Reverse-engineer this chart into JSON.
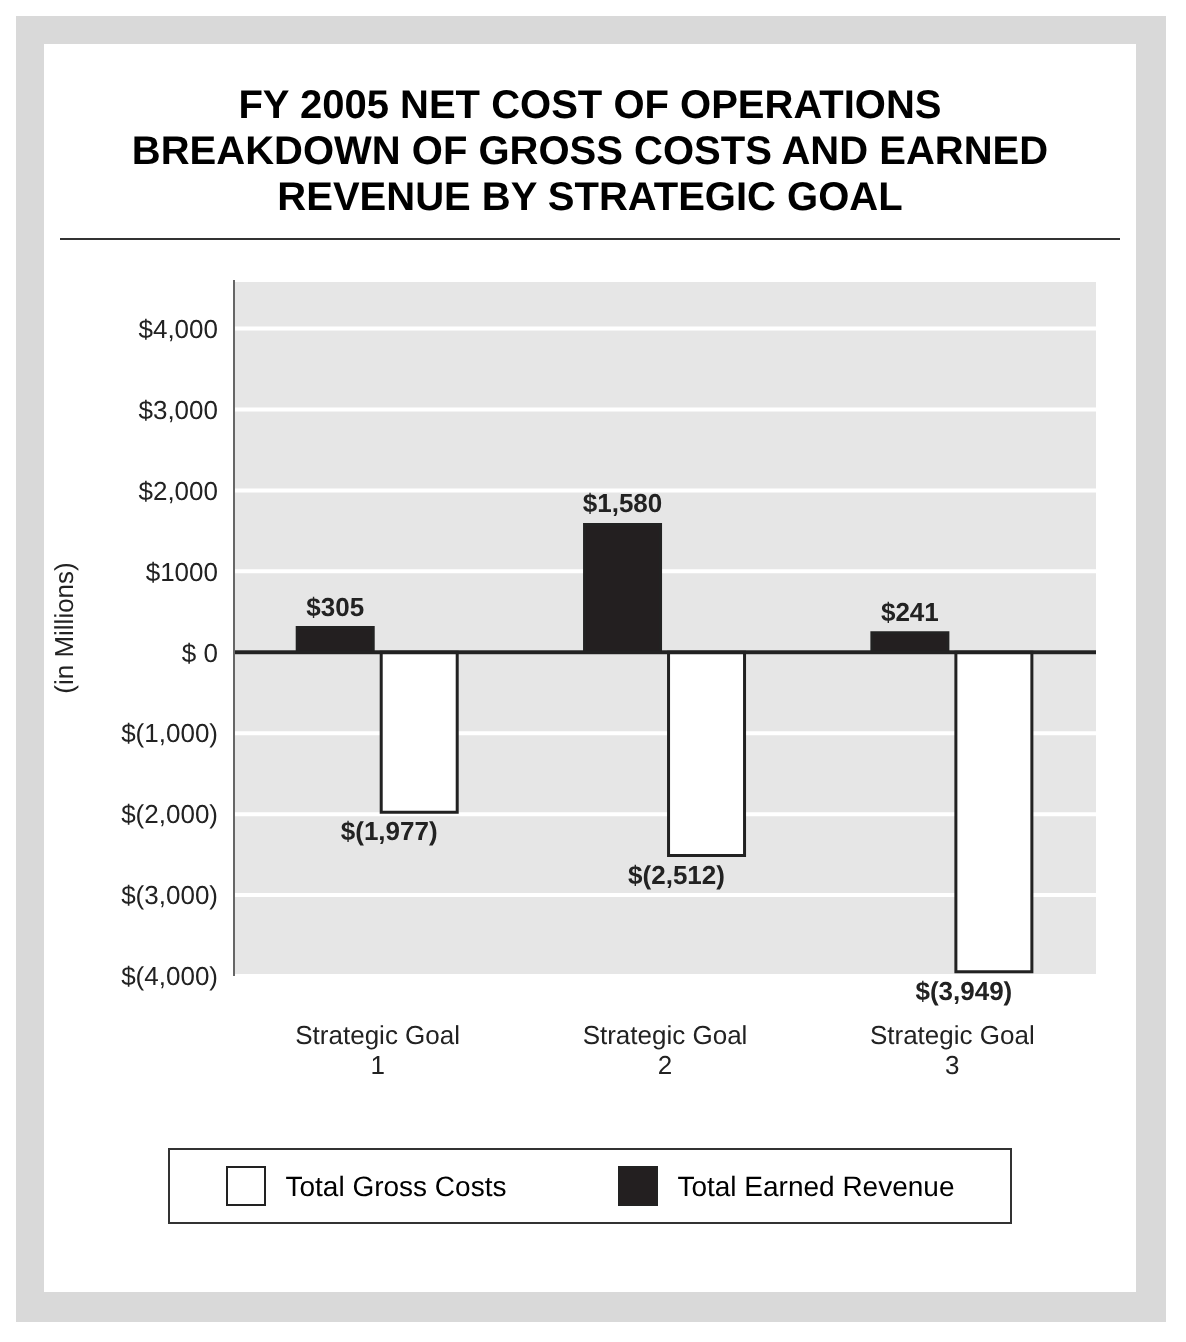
{
  "chart_data": {
    "type": "bar",
    "title": "FY 2005 NET COST OF OPERATIONS BREAKDOWN OF GROSS COSTS AND EARNED REVENUE BY STRATEGIC GOAL",
    "ylabel": "(in Millions)",
    "categories": [
      "Strategic Goal 1",
      "Strategic Goal 2",
      "Strategic Goal 3"
    ],
    "series": [
      {
        "name": "Total Earned Revenue",
        "color": "#231f20",
        "values": [
          305,
          1580,
          241
        ],
        "value_labels": [
          "$305",
          "$1,580",
          "$241"
        ]
      },
      {
        "name": "Total Gross Costs",
        "color": "#ffffff",
        "values": [
          -1977,
          -2512,
          -3949
        ],
        "value_labels": [
          "$(1,977)",
          "$(2,512)",
          "$(3,949)"
        ]
      }
    ],
    "ylim": [
      -4000,
      4600
    ],
    "yticks": [
      {
        "value": 4000,
        "label": "$4,000"
      },
      {
        "value": 3000,
        "label": "$3,000"
      },
      {
        "value": 2000,
        "label": "$2,000"
      },
      {
        "value": 1000,
        "label": "$1000"
      },
      {
        "value": 0,
        "label": "$ 0"
      },
      {
        "value": -1000,
        "label": "$(1,000)"
      },
      {
        "value": -2000,
        "label": "$(2,000)"
      },
      {
        "value": -3000,
        "label": "$(3,000)"
      },
      {
        "value": -4000,
        "label": "$(4,000)"
      }
    ],
    "grid": "y",
    "legend": "bottom"
  }
}
